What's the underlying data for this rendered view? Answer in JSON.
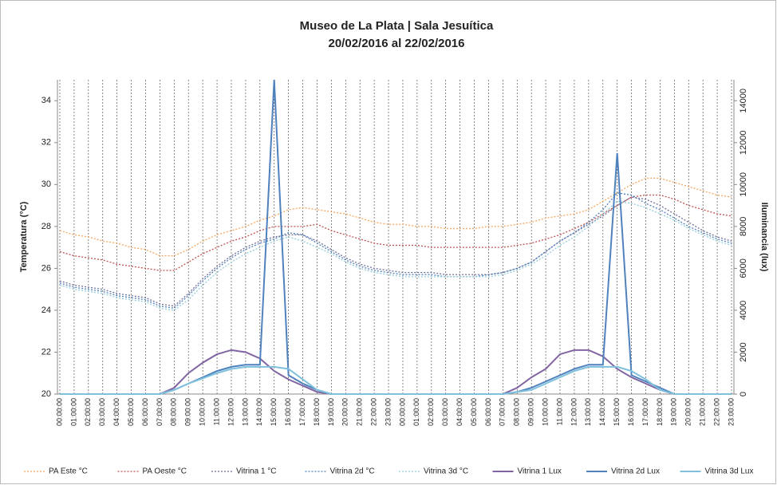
{
  "chart_data": {
    "type": "line",
    "title": "Museo de La Plata | Sala Jesuítica",
    "subtitle": "20/02/2016 al 22/02/2016",
    "y_label": "Temperatura (°C)",
    "y2_label": "Iluminancia (lux)",
    "categories": [
      "00:00:00",
      "01:00:00",
      "02:00:00",
      "03:00:00",
      "04:00:00",
      "05:00:00",
      "06:00:00",
      "07:00:00",
      "08:00:00",
      "09:00:00",
      "10:00:00",
      "11:00:00",
      "12:00:00",
      "13:00:00",
      "14:00:00",
      "15:00:00",
      "16:00:00",
      "17:00:00",
      "18:00:00",
      "19:00:00",
      "20:00:00",
      "21:00:00",
      "22:00:00",
      "23:00:00",
      "00:00:00",
      "01:00:00",
      "02:00:00",
      "03:00:00",
      "04:00:00",
      "05:00:00",
      "06:00:00",
      "07:00:00",
      "08:00:00",
      "09:00:00",
      "10:00:00",
      "11:00:00",
      "12:00:00",
      "13:00:00",
      "14:00:00",
      "15:00:00",
      "16:00:00",
      "17:00:00",
      "18:00:00",
      "19:00:00",
      "20:00:00",
      "21:00:00",
      "22:00:00",
      "23:00:00"
    ],
    "ylim": [
      20,
      35
    ],
    "yticks": [
      20,
      22,
      24,
      26,
      28,
      30,
      32,
      34
    ],
    "y2lim": [
      0,
      15000
    ],
    "y2ticks": [
      0,
      2000,
      4000,
      6000,
      8000,
      10000,
      12000,
      14000
    ],
    "grid": true,
    "legend": "bottom",
    "series": [
      {
        "name": "PA Este °C",
        "color": "#f4a65e",
        "dash": "dotted",
        "values": [
          27.8,
          27.6,
          27.5,
          27.3,
          27.2,
          27.0,
          26.9,
          26.6,
          26.6,
          26.9,
          27.3,
          27.6,
          27.8,
          28.0,
          28.3,
          28.5,
          28.8,
          28.9,
          28.8,
          28.7,
          28.6,
          28.4,
          28.2,
          28.1,
          28.1,
          28.0,
          28.0,
          27.9,
          27.9,
          27.9,
          28.0,
          28.0,
          28.1,
          28.2,
          28.4,
          28.5,
          28.6,
          28.8,
          29.2,
          29.6,
          30.0,
          30.3,
          30.3,
          30.1,
          29.9,
          29.7,
          29.5,
          29.4
        ]
      },
      {
        "name": "PA Oeste °C",
        "color": "#c0504d",
        "dash": "dotted",
        "values": [
          26.8,
          26.6,
          26.5,
          26.4,
          26.2,
          26.1,
          26.0,
          25.9,
          25.9,
          26.3,
          26.7,
          27.0,
          27.3,
          27.5,
          27.8,
          28.0,
          28.0,
          28.0,
          28.1,
          27.8,
          27.6,
          27.4,
          27.2,
          27.1,
          27.1,
          27.1,
          27.0,
          27.0,
          27.0,
          27.0,
          27.0,
          27.0,
          27.1,
          27.2,
          27.4,
          27.6,
          27.9,
          28.2,
          28.6,
          29.0,
          29.4,
          29.5,
          29.5,
          29.3,
          29.0,
          28.8,
          28.6,
          28.5
        ]
      },
      {
        "name": "Vitrina 1 °C",
        "color": "#6f6f9a",
        "dash": "dotted",
        "values": [
          25.4,
          25.2,
          25.1,
          25.0,
          24.8,
          24.7,
          24.6,
          24.3,
          24.2,
          24.8,
          25.5,
          26.1,
          26.6,
          27.0,
          27.3,
          27.5,
          27.6,
          27.6,
          27.3,
          26.9,
          26.5,
          26.2,
          26.0,
          25.9,
          25.8,
          25.8,
          25.8,
          25.7,
          25.7,
          25.7,
          25.7,
          25.8,
          26.0,
          26.3,
          26.8,
          27.3,
          27.7,
          28.1,
          28.5,
          29.0,
          29.4,
          29.3,
          29.0,
          28.6,
          28.2,
          27.8,
          27.5,
          27.3
        ]
      },
      {
        "name": "Vitrina 2d °C",
        "color": "#4f81bd",
        "dash": "dotted",
        "values": [
          25.3,
          25.1,
          25.0,
          24.9,
          24.7,
          24.6,
          24.5,
          24.2,
          24.1,
          24.7,
          25.4,
          26.0,
          26.5,
          26.9,
          27.2,
          27.4,
          27.7,
          27.6,
          27.2,
          26.8,
          26.4,
          26.1,
          25.9,
          25.8,
          25.7,
          25.7,
          25.7,
          25.6,
          25.6,
          25.6,
          25.7,
          25.8,
          26.0,
          26.3,
          26.8,
          27.3,
          27.7,
          28.2,
          28.8,
          29.6,
          29.5,
          29.1,
          28.8,
          28.4,
          28.0,
          27.7,
          27.4,
          27.2
        ]
      },
      {
        "name": "Vitrina 3d °C",
        "color": "#93cddd",
        "dash": "dotted",
        "values": [
          25.2,
          25.0,
          24.9,
          24.8,
          24.6,
          24.5,
          24.4,
          24.1,
          24.0,
          24.5,
          25.2,
          25.8,
          26.3,
          26.7,
          27.0,
          27.3,
          27.5,
          27.3,
          27.0,
          26.7,
          26.3,
          26.0,
          25.8,
          25.7,
          25.6,
          25.6,
          25.6,
          25.6,
          25.6,
          25.6,
          25.6,
          25.7,
          25.9,
          26.2,
          26.6,
          27.1,
          27.5,
          28.0,
          28.6,
          29.2,
          29.1,
          28.9,
          28.6,
          28.3,
          27.9,
          27.6,
          27.3,
          27.1
        ]
      },
      {
        "name": "Vitrina 1 Lux",
        "color": "#8064a2",
        "dash": "solid",
        "axis": "y2",
        "values": [
          0,
          0,
          0,
          0,
          0,
          0,
          0,
          0,
          300,
          1000,
          1500,
          1900,
          2100,
          2000,
          1700,
          1100,
          700,
          400,
          100,
          0,
          0,
          0,
          0,
          0,
          0,
          0,
          0,
          0,
          0,
          0,
          0,
          0,
          300,
          800,
          1200,
          1900,
          2100,
          2100,
          1800,
          1200,
          800,
          500,
          200,
          0,
          0,
          0,
          0,
          0
        ]
      },
      {
        "name": "Vitrina 2d Lux",
        "color": "#4f81bd",
        "dash": "solid",
        "axis": "y2",
        "values": [
          0,
          0,
          0,
          0,
          0,
          0,
          0,
          0,
          200,
          500,
          800,
          1100,
          1300,
          1400,
          1400,
          15000,
          900,
          500,
          200,
          0,
          0,
          0,
          0,
          0,
          0,
          0,
          0,
          0,
          0,
          0,
          0,
          0,
          100,
          300,
          600,
          900,
          1200,
          1400,
          1400,
          11500,
          900,
          600,
          300,
          0,
          0,
          0,
          0,
          0
        ]
      },
      {
        "name": "Vitrina 3d Lux",
        "color": "#7fc1dc",
        "dash": "solid",
        "axis": "y2",
        "values": [
          0,
          0,
          0,
          0,
          0,
          0,
          0,
          0,
          200,
          500,
          750,
          1000,
          1200,
          1300,
          1300,
          1300,
          1200,
          700,
          200,
          0,
          0,
          0,
          0,
          0,
          0,
          0,
          0,
          0,
          0,
          0,
          0,
          0,
          100,
          200,
          500,
          800,
          1100,
          1300,
          1300,
          1300,
          1100,
          700,
          200,
          0,
          0,
          0,
          0,
          0
        ]
      }
    ]
  }
}
